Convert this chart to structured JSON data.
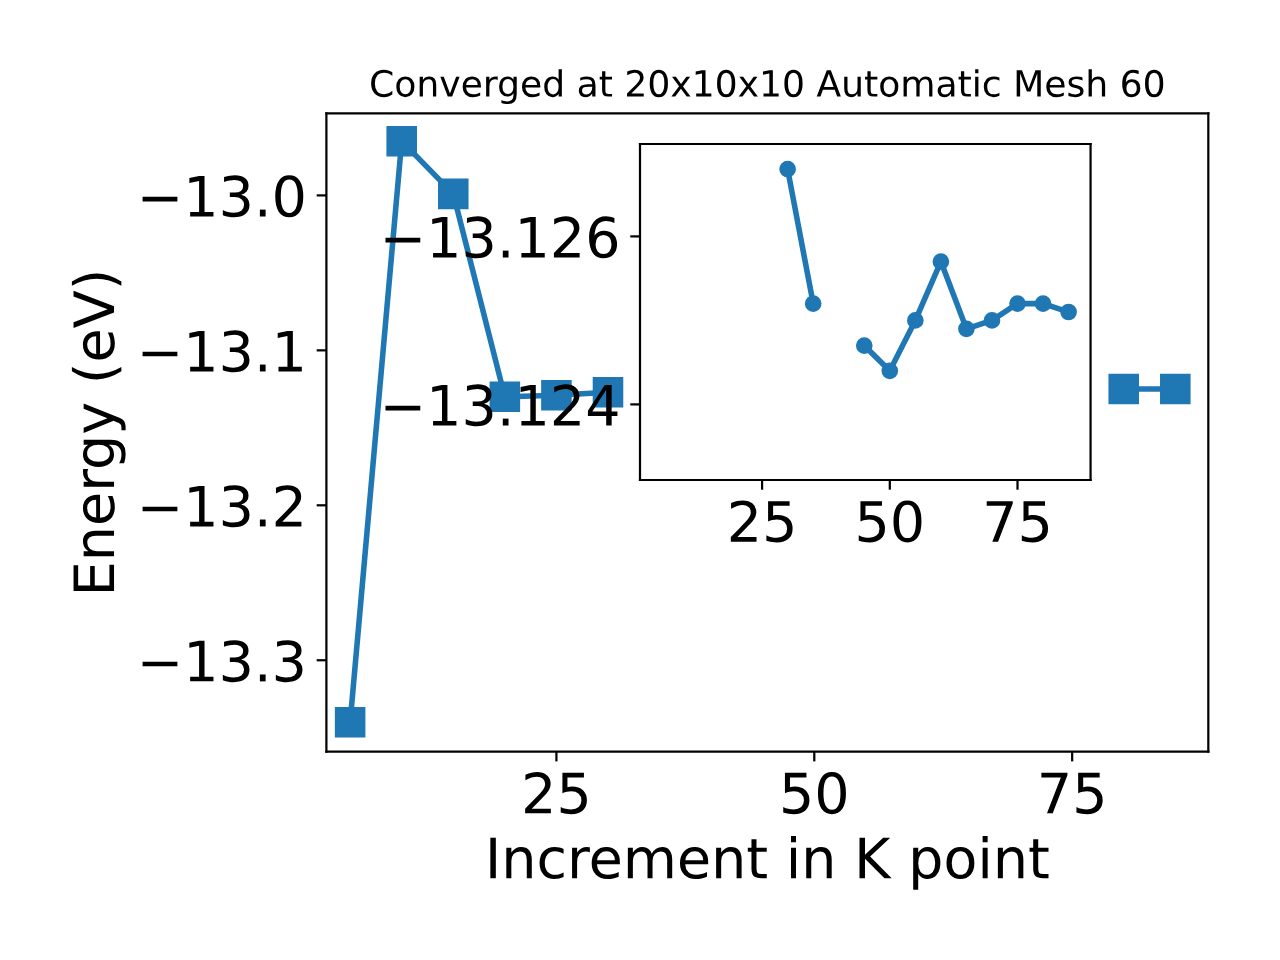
{
  "chart_data": [
    {
      "type": "line",
      "title": "Converged at 20x10x10 Automatic Mesh 60",
      "xlabel": "Increment in K point",
      "ylabel": "Energy (eV)",
      "x": [
        5,
        10,
        15,
        20,
        25,
        30,
        35,
        40,
        45,
        50,
        55,
        60,
        65,
        70,
        75,
        80,
        85
      ],
      "series": [
        {
          "color": "#1f77b4",
          "values": [
            -13.34,
            -12.965,
            -12.999,
            -13.13,
            -13.129,
            -13.127,
            null,
            null,
            null,
            null,
            null,
            null,
            null,
            null,
            null,
            -13.125,
            -13.125
          ]
        }
      ],
      "xlim": [
        2.7,
        88.2
      ],
      "xticks": [
        25,
        50,
        75
      ],
      "ylim": [
        -13.359,
        -12.947
      ],
      "yticks": [
        -13.3,
        -13.2,
        -13.1,
        {
          "value": -13.0,
          "label": "−13.0"
        }
      ],
      "marker": "square",
      "line_style": "solid",
      "grid": false,
      "legend": false
    },
    {
      "type": "line",
      "x": [
        30,
        35,
        40,
        45,
        50,
        55,
        60,
        65,
        70,
        75,
        80,
        85
      ],
      "series": [
        {
          "color": "#1f77b4",
          "values": [
            -13.1268,
            -13.1252,
            null,
            -13.1247,
            -13.1244,
            -13.125,
            -13.1257,
            -13.1249,
            -13.125,
            -13.1252,
            -13.1252,
            -13.1251
          ]
        }
      ],
      "xlim": [
        1.1,
        89.3
      ],
      "xticks": [
        25,
        50,
        75
      ],
      "ylim": [
        -13.1231,
        -13.1271
      ],
      "yticks": [
        -13.126,
        -13.124
      ],
      "marker": "circle",
      "line_style": "solid",
      "grid": false,
      "legend": false
    }
  ]
}
